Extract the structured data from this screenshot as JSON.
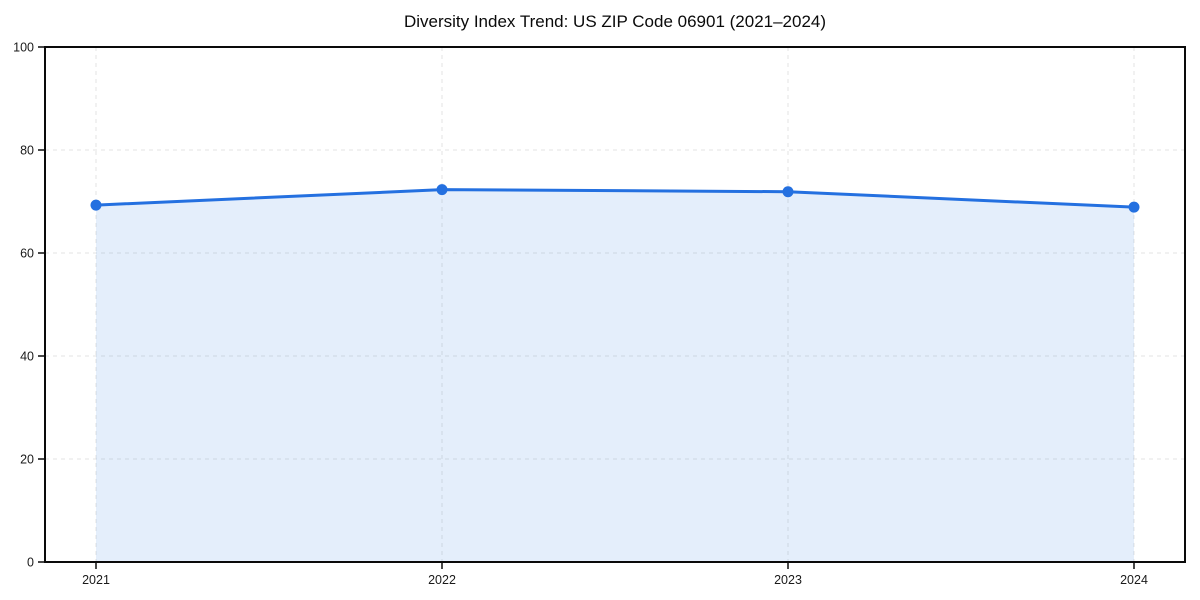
{
  "chart_data": {
    "type": "area",
    "title": "Diversity Index Trend: US ZIP Code 06901 (2021–2024)",
    "x": [
      "2021",
      "2022",
      "2023",
      "2024"
    ],
    "values": [
      69.3,
      72.3,
      71.9,
      68.9
    ],
    "xlabel": "",
    "ylabel": "",
    "ylim": [
      0,
      100
    ],
    "yticks": [
      0,
      20,
      40,
      60,
      80,
      100
    ],
    "grid": true,
    "grid_style": "dashed",
    "legend_position": "none",
    "colors": {
      "line": "#2470e0",
      "marker": "#2470e0",
      "fill": "rgba(36,112,224,0.12)",
      "grid": "#e3e3e3",
      "spine": "#0a0a0a",
      "tick_label": "#1a1a1a",
      "title": "#0a0a0a",
      "background": "#ffffff"
    }
  }
}
